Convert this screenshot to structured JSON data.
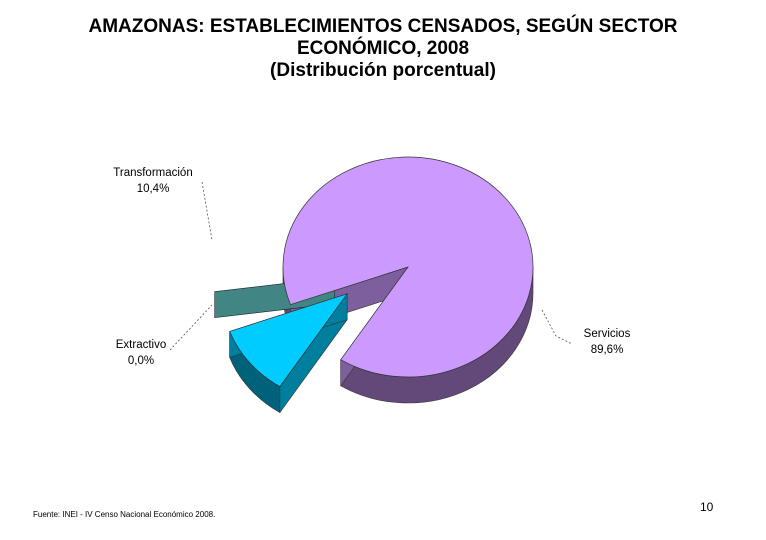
{
  "chart_data": {
    "type": "pie",
    "title_lines": [
      "AMAZONAS: ESTABLECIMIENTOS CENSADOS, SEGÚN SECTOR",
      "ECONÓMICO, 2008",
      "(Distribución porcentual)"
    ],
    "slices": [
      {
        "name": "Servicios",
        "value_label": "89,6%",
        "value": 89.6,
        "color": "#cc99ff"
      },
      {
        "name": "Transformación",
        "value_label": "10,4%",
        "value": 10.4,
        "color": "#00ccff"
      },
      {
        "name": "Extractivo",
        "value_label": "0,0%",
        "value": 0.0,
        "color": "#336666"
      }
    ]
  },
  "source": "Fuente: INEI - IV Censo Nacional Económico 2008.",
  "page_number": "10"
}
